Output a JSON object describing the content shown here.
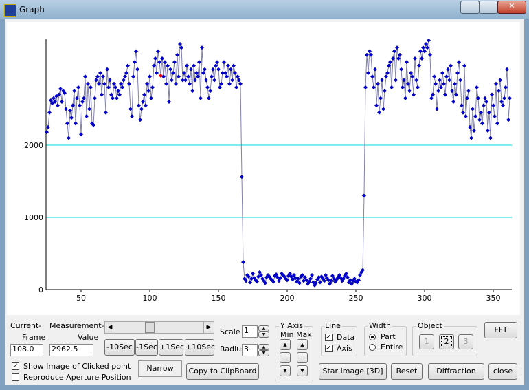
{
  "window": {
    "title": "Graph"
  },
  "chart_data": {
    "type": "line",
    "marker": "diamond",
    "color": "#0000c8",
    "line_color": "#8080b0",
    "grid_color": "#00d8d8",
    "selected_index": 83,
    "selected_color": "#ff0000",
    "xlim": [
      24.5,
      363.5
    ],
    "xticks": [
      50,
      100,
      150,
      200,
      250,
      300,
      350
    ],
    "ylim": [
      0,
      3467
    ],
    "yticks": [
      0,
      1000,
      2000
    ],
    "x": [
      25,
      26,
      27,
      28,
      29,
      30,
      31,
      32,
      33,
      34,
      35,
      36,
      37,
      38,
      39,
      40,
      41,
      42,
      43,
      44,
      45,
      46,
      47,
      48,
      49,
      50,
      51,
      52,
      53,
      54,
      55,
      56,
      57,
      58,
      59,
      60,
      61,
      62,
      63,
      64,
      65,
      66,
      67,
      68,
      69,
      70,
      71,
      72,
      73,
      74,
      75,
      76,
      77,
      78,
      79,
      80,
      81,
      82,
      83,
      84,
      85,
      86,
      87,
      88,
      89,
      90,
      91,
      92,
      93,
      94,
      95,
      96,
      97,
      98,
      99,
      100,
      101,
      102,
      103,
      104,
      105,
      106,
      107,
      108,
      109,
      110,
      111,
      112,
      113,
      114,
      115,
      116,
      117,
      118,
      119,
      120,
      121,
      122,
      123,
      124,
      125,
      126,
      127,
      128,
      129,
      130,
      131,
      132,
      133,
      134,
      135,
      136,
      137,
      138,
      139,
      140,
      141,
      142,
      143,
      144,
      145,
      146,
      147,
      148,
      149,
      150,
      151,
      152,
      153,
      154,
      155,
      156,
      157,
      158,
      159,
      160,
      161,
      162,
      163,
      164,
      165,
      166,
      167,
      168,
      169,
      170,
      171,
      172,
      173,
      174,
      175,
      176,
      177,
      178,
      179,
      180,
      181,
      182,
      183,
      184,
      185,
      186,
      187,
      188,
      189,
      190,
      191,
      192,
      193,
      194,
      195,
      196,
      197,
      198,
      199,
      200,
      201,
      202,
      203,
      204,
      205,
      206,
      207,
      208,
      209,
      210,
      211,
      212,
      213,
      214,
      215,
      216,
      217,
      218,
      219,
      220,
      221,
      222,
      223,
      224,
      225,
      226,
      227,
      228,
      229,
      230,
      231,
      232,
      233,
      234,
      235,
      236,
      237,
      238,
      239,
      240,
      241,
      242,
      243,
      244,
      245,
      246,
      247,
      248,
      249,
      250,
      251,
      252,
      253,
      254,
      255,
      256,
      257,
      258,
      259,
      260,
      261,
      262,
      263,
      264,
      265,
      266,
      267,
      268,
      269,
      270,
      271,
      272,
      273,
      274,
      275,
      276,
      277,
      278,
      279,
      280,
      281,
      282,
      283,
      284,
      285,
      286,
      287,
      288,
      289,
      290,
      291,
      292,
      293,
      294,
      295,
      296,
      297,
      298,
      299,
      300,
      301,
      302,
      303,
      304,
      305,
      306,
      307,
      308,
      309,
      310,
      311,
      312,
      313,
      314,
      315,
      316,
      317,
      318,
      319,
      320,
      321,
      322,
      323,
      324,
      325,
      326,
      327,
      328,
      329,
      330,
      331,
      332,
      333,
      334,
      335,
      336,
      337,
      338,
      339,
      340,
      341,
      342,
      343,
      344,
      345,
      346,
      347,
      348,
      349,
      350,
      351,
      352,
      353,
      354,
      355,
      356,
      357,
      358,
      359,
      360,
      361,
      362
    ],
    "values": [
      2180,
      2250,
      2450,
      2620,
      2580,
      2650,
      2600,
      2680,
      2550,
      2700,
      2780,
      2600,
      2750,
      2720,
      2500,
      2300,
      2100,
      2480,
      2380,
      2550,
      2750,
      2300,
      2650,
      2800,
      2550,
      2150,
      2600,
      2650,
      2950,
      2400,
      2850,
      2500,
      2800,
      2300,
      2280,
      2650,
      2900,
      2950,
      2850,
      3000,
      2700,
      2950,
      2850,
      2450,
      3050,
      2800,
      2900,
      2700,
      2650,
      2850,
      2800,
      2650,
      2750,
      2700,
      2850,
      2800,
      2900,
      2950,
      3000,
      3100,
      2850,
      2500,
      2400,
      2950,
      3150,
      3300,
      3050,
      2550,
      2350,
      2500,
      2600,
      2700,
      2550,
      2850,
      2750,
      2950,
      2650,
      2800,
      3100,
      3200,
      3000,
      3300,
      3150,
      2962.5,
      3200,
      2950,
      3150,
      2850,
      3100,
      2600,
      3050,
      2900,
      3000,
      3150,
      2850,
      3250,
      2950,
      3400,
      3350,
      2900,
      3000,
      2900,
      3100,
      2950,
      2850,
      3050,
      2750,
      3100,
      2900,
      3000,
      2950,
      3150,
      2650,
      3350,
      3000,
      3050,
      2900,
      2800,
      2650,
      2750,
      2950,
      3050,
      2900,
      3100,
      3150,
      3050,
      2800,
      2850,
      3000,
      3150,
      3000,
      2950,
      3100,
      2850,
      3050,
      2900,
      3100,
      3000,
      2800,
      2950,
      2900,
      2850,
      1560,
      380,
      150,
      120,
      200,
      180,
      100,
      150,
      220,
      160,
      130,
      110,
      180,
      240,
      200,
      150,
      120,
      90,
      170,
      200,
      180,
      150,
      130,
      110,
      190,
      210,
      170,
      120,
      160,
      220,
      200,
      180,
      150,
      130,
      190,
      220,
      180,
      140,
      200,
      160,
      110,
      150,
      90,
      180,
      200,
      120,
      170,
      130,
      80,
      110,
      150,
      200,
      100,
      60,
      90,
      140,
      170,
      100,
      180,
      150,
      120,
      200,
      160,
      130,
      80,
      120,
      190,
      150,
      110,
      140,
      170,
      200,
      160,
      120,
      150,
      190,
      220,
      170,
      100,
      130,
      80,
      120,
      150,
      110,
      100,
      130,
      200,
      240,
      270,
      1300,
      2800,
      3250,
      3000,
      3300,
      3250,
      2950,
      2800,
      3050,
      2550,
      2850,
      2450,
      2650,
      2900,
      2500,
      2750,
      2950,
      3000,
      3100,
      3150,
      2800,
      3200,
      3300,
      2900,
      3350,
      3200,
      3250,
      3050,
      2800,
      2900,
      2650,
      3150,
      2850,
      2750,
      3000,
      2950,
      2700,
      3200,
      2900,
      2800,
      3100,
      3300,
      3200,
      3350,
      3300,
      3400,
      3350,
      3450,
      3250,
      2650,
      2700,
      2950,
      2850,
      2500,
      2750,
      2900,
      2800,
      3000,
      2850,
      2700,
      2950,
      3050,
      2900,
      3100,
      2750,
      2600,
      2850,
      2700,
      3000,
      3150,
      2900,
      2550,
      2450,
      3100,
      2400,
      2650,
      2750,
      2250,
      2100,
      2500,
      2200,
      2400,
      2800,
      2650,
      2350,
      2450,
      2300,
      2550,
      2650,
      2600,
      2200,
      2450,
      2100,
      2700,
      2550,
      2400,
      2850,
      2300,
      2750,
      2900,
      2600,
      2550,
      2650,
      2800,
      3050,
      2350,
      2650
    ]
  },
  "controls": {
    "current_label": [
      "Current-",
      "Frame"
    ],
    "current_frame": "108.0",
    "measurement_label": [
      "Measurement-",
      "Value"
    ],
    "measurement_value": "2962.5",
    "step_buttons": [
      "-10Sec",
      "-1Sec",
      "+1Sec",
      "+10Sec"
    ],
    "scale_label": "Scale",
    "scale_value": "1",
    "radius_label": "Radius",
    "radius_value": "3",
    "y_axis": {
      "title": "Y Axis",
      "min": "Min",
      "max": "Max"
    },
    "line": {
      "title": "Line",
      "options": [
        "Data",
        "Axis"
      ]
    },
    "width": {
      "title": "Width",
      "options": [
        "Part",
        "Entire"
      ]
    },
    "object": {
      "title": "Object",
      "buttons": [
        "1",
        "2",
        "3"
      ]
    },
    "fft": "FFT",
    "checks": [
      "Show Image of Clicked point",
      "Reproduce Aperture Position"
    ],
    "narrow": "Narrow",
    "buttons": [
      "Copy to ClipBoard",
      "Star Image [3D]",
      "Reset",
      "Diffraction",
      "close"
    ]
  }
}
